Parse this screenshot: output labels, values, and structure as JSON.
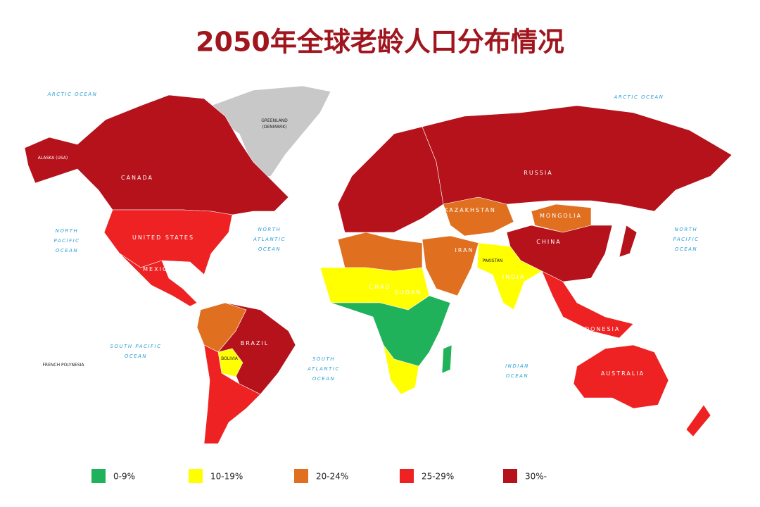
{
  "title": "2050年全球老龄人口分布情况",
  "legend": [
    {
      "label": "0-9%",
      "color": "#1fb25a"
    },
    {
      "label": "10-19%",
      "color": "#ffff00"
    },
    {
      "label": "20-24%",
      "color": "#e07020"
    },
    {
      "label": "25-29%",
      "color": "#ee2222"
    },
    {
      "label": "30%-",
      "color": "#b5121b"
    }
  ],
  "no_data_color": "#c8c8c8",
  "labels": {
    "arctic_1": "ARCTIC OCEAN",
    "arctic_2": "ARCTIC OCEAN",
    "greenland": "GREENLAND",
    "denmark": "(DENMARK)",
    "alaska": "ALASKA (USA)",
    "canada": "CANADA",
    "usa": "UNITED STATES",
    "mexico": "MEXICO",
    "russia": "RUSSIA",
    "kazakhstan": "KAZAKHSTAN",
    "mongolia": "MONGOLIA",
    "china": "CHINA",
    "india": "INDIA",
    "iran": "IRAN",
    "pakistan": "PAKISTAN",
    "sudan": "SUDAN",
    "chad": "CHAD",
    "brazil": "BRAZIL",
    "bolivia": "BOLIVIA",
    "australia": "AUSTRALIA",
    "indonesia": "INDONESIA",
    "french_polynesia": "FRENCH  POLYNESIA",
    "np_west": [
      "NORTH",
      "PACIFIC",
      "OCEAN"
    ],
    "np_east": [
      "NORTH",
      "PACIFIC",
      "OCEAN"
    ],
    "n_atlantic": [
      "NORTH",
      "ATLANTIC",
      "OCEAN"
    ],
    "s_pacific": [
      "SOUTH  PACIFIC",
      "OCEAN"
    ],
    "s_atlantic": [
      "SOUTH",
      "ATLANTIC",
      "OCEAN"
    ],
    "indian": [
      "INDIAN",
      "OCEAN"
    ]
  }
}
